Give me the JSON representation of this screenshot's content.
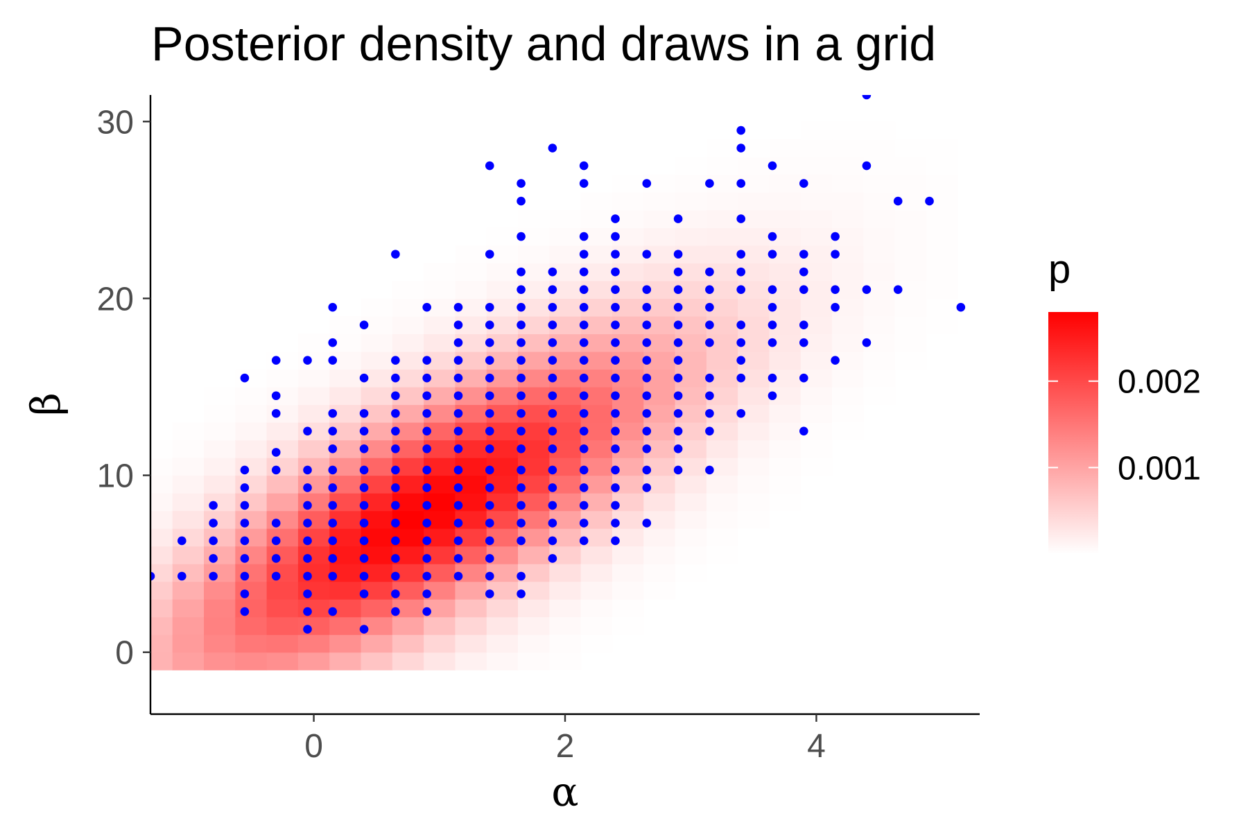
{
  "chart_data": {
    "type": "heatmap",
    "title": "Posterior density and draws in a grid",
    "xlabel": "α",
    "ylabel": "β",
    "xlim": [
      -1.3,
      5.3
    ],
    "ylim": [
      -3.5,
      31.5
    ],
    "x_ticks": [
      {
        "value": 0,
        "label": "0"
      },
      {
        "value": 2,
        "label": "2"
      },
      {
        "value": 4,
        "label": "4"
      }
    ],
    "y_ticks": [
      {
        "value": 0,
        "label": "0"
      },
      {
        "value": 10,
        "label": "10"
      },
      {
        "value": 20,
        "label": "20"
      },
      {
        "value": 30,
        "label": "30"
      }
    ],
    "grid": false,
    "density": {
      "grid_x_range": [
        -1.5,
        5.2
      ],
      "grid_y_range": [
        -0.5,
        32
      ],
      "grid_x_step": 0.25,
      "grid_y_step": 1.0,
      "mode": [
        0.85,
        7.8
      ],
      "peak_value": 0.0028
    },
    "legend": {
      "title": "p",
      "position": "right",
      "color_low": "#ffffff",
      "color_high": "#ff0000",
      "range": [
        0,
        0.0028
      ],
      "breaks": [
        {
          "value": 0.001,
          "label": "0.001"
        },
        {
          "value": 0.002,
          "label": "0.002"
        }
      ]
    },
    "point_color": "#0000ff",
    "point_series": [
      {
        "x": -1.3,
        "y": [
          4.3
        ]
      },
      {
        "x": -1.05,
        "y": [
          4.3,
          6.3
        ]
      },
      {
        "x": -0.8,
        "y": [
          4.3,
          5.3,
          6.3,
          7.3,
          8.3
        ]
      },
      {
        "x": -0.55,
        "y": [
          2.3,
          3.3,
          4.3,
          5.3,
          6.3,
          7.3,
          8.3,
          9.3,
          10.3,
          15.5
        ]
      },
      {
        "x": -0.3,
        "y": [
          4.3,
          5.3,
          6.3,
          7.3,
          10.3,
          11.3,
          13.5,
          14.5,
          16.5
        ]
      },
      {
        "x": -0.05,
        "y": [
          1.3,
          2.3,
          3.3,
          4.3,
          5.3,
          6.3,
          7.3,
          8.3,
          9.3,
          10.3,
          12.5,
          16.5
        ]
      },
      {
        "x": 0.15,
        "y": [
          2.3,
          4.3,
          5.3,
          6.3,
          7.3,
          8.3,
          9.3,
          10.3,
          11.5,
          12.5,
          13.5,
          16.5,
          17.5,
          19.5
        ]
      },
      {
        "x": 0.4,
        "y": [
          1.3,
          3.3,
          4.3,
          5.3,
          6.3,
          7.3,
          8.3,
          9.3,
          10.3,
          11.5,
          12.5,
          13.5,
          15.5,
          18.5
        ]
      },
      {
        "x": 0.65,
        "y": [
          2.3,
          3.3,
          4.3,
          5.3,
          6.3,
          7.3,
          8.3,
          9.3,
          10.3,
          11.5,
          12.5,
          13.5,
          14.5,
          15.5,
          16.5,
          22.5
        ]
      },
      {
        "x": 0.9,
        "y": [
          2.3,
          3.3,
          4.3,
          5.3,
          6.3,
          7.3,
          8.3,
          9.3,
          10.3,
          11.5,
          12.5,
          13.5,
          14.5,
          15.5,
          16.5,
          19.5
        ]
      },
      {
        "x": 1.15,
        "y": [
          4.3,
          5.3,
          6.3,
          7.3,
          8.3,
          9.3,
          10.3,
          11.5,
          12.5,
          13.5,
          14.5,
          15.5,
          16.5,
          17.5,
          18.5,
          19.5
        ]
      },
      {
        "x": 1.4,
        "y": [
          3.3,
          4.3,
          5.3,
          6.3,
          7.3,
          8.3,
          9.3,
          10.3,
          11.5,
          12.5,
          13.5,
          14.5,
          15.5,
          16.5,
          17.5,
          18.5,
          19.5,
          22.5,
          27.5
        ]
      },
      {
        "x": 1.65,
        "y": [
          3.3,
          4.3,
          6.3,
          7.3,
          8.3,
          9.3,
          10.3,
          11.5,
          12.5,
          13.5,
          14.5,
          15.5,
          16.5,
          17.5,
          18.5,
          19.5,
          20.5,
          21.5,
          23.5,
          25.5,
          26.5
        ]
      },
      {
        "x": 1.9,
        "y": [
          5.3,
          6.3,
          7.3,
          8.3,
          9.3,
          10.3,
          11.5,
          12.5,
          13.5,
          14.5,
          15.5,
          16.5,
          17.5,
          18.5,
          19.5,
          20.5,
          21.5,
          28.5
        ]
      },
      {
        "x": 2.15,
        "y": [
          6.3,
          7.3,
          8.3,
          9.3,
          10.3,
          11.5,
          12.5,
          13.5,
          14.5,
          15.5,
          16.5,
          17.5,
          18.5,
          19.5,
          20.5,
          21.5,
          22.5,
          23.5,
          26.5,
          27.5
        ]
      },
      {
        "x": 2.4,
        "y": [
          6.3,
          7.3,
          8.3,
          9.3,
          10.3,
          11.5,
          12.5,
          13.5,
          14.5,
          15.5,
          16.5,
          17.5,
          18.5,
          19.5,
          20.5,
          21.5,
          22.5,
          23.5,
          24.5
        ]
      },
      {
        "x": 2.65,
        "y": [
          7.3,
          9.3,
          10.3,
          11.5,
          12.5,
          13.5,
          14.5,
          15.5,
          16.5,
          17.5,
          18.5,
          19.5,
          20.5,
          22.5,
          26.5
        ]
      },
      {
        "x": 2.9,
        "y": [
          10.3,
          11.5,
          12.5,
          13.5,
          14.5,
          15.5,
          16.5,
          17.5,
          18.5,
          19.5,
          20.5,
          21.5,
          22.5,
          24.5
        ]
      },
      {
        "x": 3.15,
        "y": [
          10.3,
          12.5,
          13.5,
          14.5,
          15.5,
          17.5,
          18.5,
          19.5,
          20.5,
          21.5,
          26.5
        ]
      },
      {
        "x": 3.4,
        "y": [
          13.5,
          15.5,
          16.5,
          17.5,
          18.5,
          20.5,
          21.5,
          22.5,
          24.5,
          26.5,
          28.5,
          29.5
        ]
      },
      {
        "x": 3.65,
        "y": [
          14.5,
          15.5,
          17.5,
          18.5,
          19.5,
          20.5,
          22.5,
          23.5,
          27.5
        ]
      },
      {
        "x": 3.9,
        "y": [
          12.5,
          15.5,
          17.5,
          18.5,
          20.5,
          21.5,
          22.5,
          26.5
        ]
      },
      {
        "x": 4.15,
        "y": [
          16.5,
          19.5,
          20.5,
          22.5,
          23.5
        ]
      },
      {
        "x": 4.4,
        "y": [
          17.5,
          20.5,
          27.5,
          31.5
        ]
      },
      {
        "x": 4.65,
        "y": [
          20.5,
          25.5
        ]
      },
      {
        "x": 4.9,
        "y": [
          25.5
        ]
      },
      {
        "x": 5.15,
        "y": [
          19.5
        ]
      }
    ]
  }
}
